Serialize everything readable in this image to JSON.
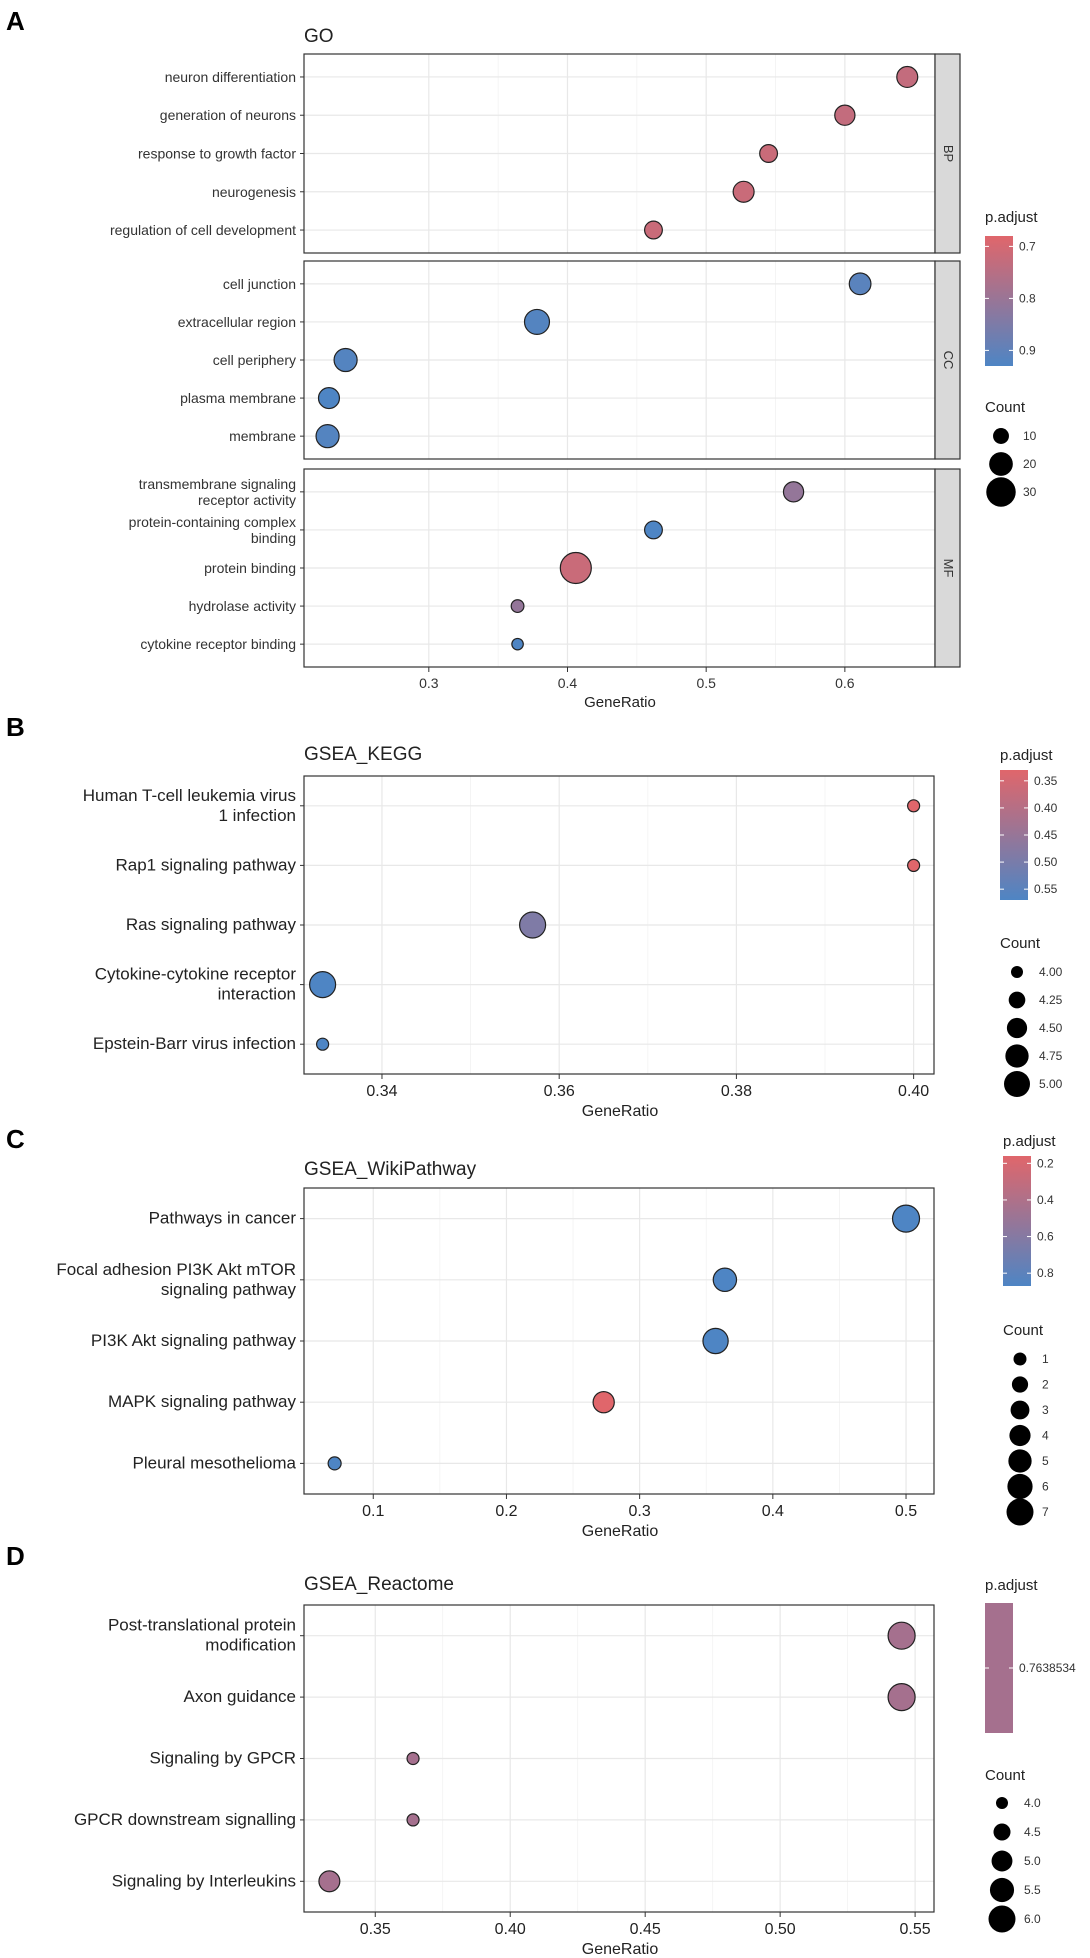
{
  "colors": {
    "high_padj": "#4E85C4",
    "low_padj": "#E0666B",
    "grid": "#E8E8E8",
    "strip": "#D9D9D9"
  },
  "chart_data": [
    {
      "type": "scatter",
      "panel_letter": "A",
      "title": "GO",
      "xlabel": "GeneRatio",
      "xlim": [
        0.21,
        0.665
      ],
      "xticks": [
        0.3,
        0.4,
        0.5,
        0.6
      ],
      "xtick_labels": [
        "0.3",
        "0.4",
        "0.5",
        "0.6"
      ],
      "facets": [
        {
          "name": "BP",
          "points": [
            {
              "term": "neuron differentiation",
              "ratio": 0.645,
              "count": 16,
              "padj": 0.73
            },
            {
              "term": "generation of neurons",
              "ratio": 0.6,
              "count": 15,
              "padj": 0.73
            },
            {
              "term": "response to growth factor",
              "ratio": 0.545,
              "count": 12,
              "padj": 0.72
            },
            {
              "term": "neurogenesis",
              "ratio": 0.527,
              "count": 16,
              "padj": 0.72
            },
            {
              "term": "regulation of cell development",
              "ratio": 0.462,
              "count": 12,
              "padj": 0.72
            }
          ]
        },
        {
          "name": "CC",
          "points": [
            {
              "term": "cell junction",
              "ratio": 0.611,
              "count": 17,
              "padj": 0.91
            },
            {
              "term": "extracellular region",
              "ratio": 0.378,
              "count": 22,
              "padj": 0.92
            },
            {
              "term": "cell periphery",
              "ratio": 0.24,
              "count": 19,
              "padj": 0.92
            },
            {
              "term": "plasma membrane",
              "ratio": 0.228,
              "count": 16,
              "padj": 0.93
            },
            {
              "term": "membrane",
              "ratio": 0.227,
              "count": 19,
              "padj": 0.92
            }
          ]
        },
        {
          "name": "MF",
          "points": [
            {
              "term": "transmembrane signaling\nreceptor activity",
              "ratio": 0.563,
              "count": 15,
              "padj": 0.81
            },
            {
              "term": "protein-containing complex\nbinding",
              "ratio": 0.462,
              "count": 12,
              "padj": 0.93
            },
            {
              "term": "protein binding",
              "ratio": 0.406,
              "count": 33,
              "padj": 0.72
            },
            {
              "term": "hydrolase activity",
              "ratio": 0.364,
              "count": 7,
              "padj": 0.81
            },
            {
              "term": "cytokine receptor binding",
              "ratio": 0.364,
              "count": 6,
              "padj": 0.93
            }
          ]
        }
      ],
      "legend": {
        "color_title": "p.adjust",
        "color_range": [
          0.68,
          0.93
        ],
        "color_ticks": [
          0.7,
          0.8,
          0.9
        ],
        "color_tick_labels": [
          "0.7",
          "0.8",
          "0.9"
        ],
        "size_title": "Count",
        "size_range": [
          5,
          33
        ],
        "size_ticks": [
          10,
          20,
          30
        ],
        "size_tick_labels": [
          "10",
          "20",
          "30"
        ]
      }
    },
    {
      "type": "scatter",
      "panel_letter": "B",
      "title": "GSEA_KEGG",
      "xlabel": "GeneRatio",
      "xlim": [
        0.3312,
        0.4023
      ],
      "xticks": [
        0.34,
        0.36,
        0.38,
        0.4
      ],
      "xtick_labels": [
        "0.34",
        "0.36",
        "0.38",
        "0.40"
      ],
      "points": [
        {
          "term": "Human T-cell leukemia virus\n1 infection",
          "ratio": 0.4,
          "count": 4,
          "padj": 0.33
        },
        {
          "term": "Rap1 signaling pathway",
          "ratio": 0.4,
          "count": 4,
          "padj": 0.33
        },
        {
          "term": "Ras signaling pathway",
          "ratio": 0.357,
          "count": 5,
          "padj": 0.49
        },
        {
          "term": "Cytokine-cytokine receptor\ninteraction",
          "ratio": 0.3333,
          "count": 5,
          "padj": 0.57
        },
        {
          "term": "Epstein-Barr virus infection",
          "ratio": 0.3333,
          "count": 4,
          "padj": 0.57
        }
      ],
      "legend": {
        "color_title": "p.adjust",
        "color_range": [
          0.33,
          0.57
        ],
        "color_ticks": [
          0.35,
          0.4,
          0.45,
          0.5,
          0.55
        ],
        "color_tick_labels": [
          "0.35",
          "0.40",
          "0.45",
          "0.50",
          "0.55"
        ],
        "size_title": "Count",
        "size_range": [
          4,
          5
        ],
        "size_ticks": [
          4.0,
          4.25,
          4.5,
          4.75,
          5.0
        ],
        "size_tick_labels": [
          "4.00",
          "4.25",
          "4.50",
          "4.75",
          "5.00"
        ]
      }
    },
    {
      "type": "scatter",
      "panel_letter": "C",
      "title": "GSEA_WikiPathway",
      "xlabel": "GeneRatio",
      "xlim": [
        0.048,
        0.521
      ],
      "xticks": [
        0.1,
        0.2,
        0.3,
        0.4,
        0.5
      ],
      "xtick_labels": [
        "0.1",
        "0.2",
        "0.3",
        "0.4",
        "0.5"
      ],
      "points": [
        {
          "term": "Pathways in cancer",
          "ratio": 0.5,
          "count": 7,
          "padj": 0.87
        },
        {
          "term": "Focal adhesion PI3K Akt mTOR\nsignaling pathway",
          "ratio": 0.364,
          "count": 5,
          "padj": 0.87
        },
        {
          "term": "PI3K Akt signaling pathway",
          "ratio": 0.357,
          "count": 6,
          "padj": 0.87
        },
        {
          "term": "MAPK signaling pathway",
          "ratio": 0.273,
          "count": 4,
          "padj": 0.16
        },
        {
          "term": "Pleural mesothelioma",
          "ratio": 0.071,
          "count": 1,
          "padj": 0.87
        }
      ],
      "legend": {
        "color_title": "p.adjust",
        "color_range": [
          0.16,
          0.87
        ],
        "color_ticks": [
          0.2,
          0.4,
          0.6,
          0.8
        ],
        "color_tick_labels": [
          "0.2",
          "0.4",
          "0.6",
          "0.8"
        ],
        "size_title": "Count",
        "size_range": [
          1,
          7
        ],
        "size_ticks": [
          1,
          2,
          3,
          4,
          5,
          6,
          7
        ],
        "size_tick_labels": [
          "1",
          "2",
          "3",
          "4",
          "5",
          "6",
          "7"
        ]
      }
    },
    {
      "type": "scatter",
      "panel_letter": "D",
      "title": "GSEA_Reactome",
      "xlabel": "GeneRatio",
      "xlim": [
        0.3236,
        0.557
      ],
      "xticks": [
        0.35,
        0.4,
        0.45,
        0.5,
        0.55
      ],
      "xtick_labels": [
        "0.35",
        "0.40",
        "0.45",
        "0.50",
        "0.55"
      ],
      "points": [
        {
          "term": "Post-translational protein\nmodification",
          "ratio": 0.545,
          "count": 6,
          "padj": 0.7638534
        },
        {
          "term": "Axon guidance",
          "ratio": 0.545,
          "count": 6,
          "padj": 0.7638534
        },
        {
          "term": "Signaling by GPCR",
          "ratio": 0.364,
          "count": 4,
          "padj": 0.7638534
        },
        {
          "term": "GPCR downstream signalling",
          "ratio": 0.364,
          "count": 4,
          "padj": 0.7638534
        },
        {
          "term": "Signaling by Interleukins",
          "ratio": 0.333,
          "count": 5,
          "padj": 0.7638534
        }
      ],
      "legend": {
        "color_title": "p.adjust",
        "single_color": "#A5708E",
        "color_tick_labels": [
          "0.7638534"
        ],
        "size_title": "Count",
        "size_range": [
          4,
          6
        ],
        "size_ticks": [
          4.0,
          4.5,
          5.0,
          5.5,
          6.0
        ],
        "size_tick_labels": [
          "4.0",
          "4.5",
          "5.0",
          "5.5",
          "6.0"
        ]
      }
    }
  ]
}
